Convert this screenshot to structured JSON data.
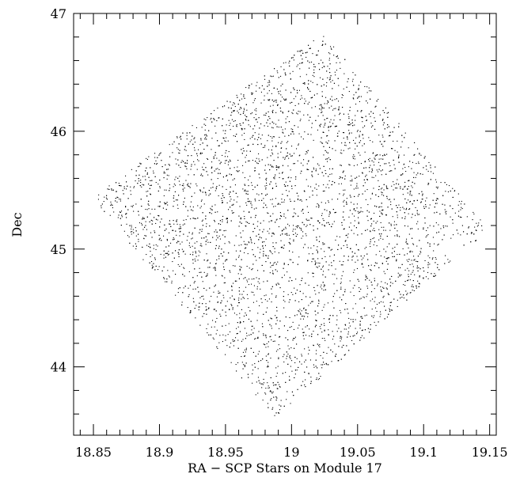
{
  "chart_data": {
    "type": "scatter",
    "title": "",
    "xlabel": "RA − SCP Stars on Module 17",
    "ylabel": "Dec",
    "xlim": [
      18.835,
      19.155
    ],
    "ylim": [
      43.42,
      47.0
    ],
    "x_ticks": [
      {
        "value": 18.85,
        "label": "18.85"
      },
      {
        "value": 18.9,
        "label": "18.9"
      },
      {
        "value": 18.95,
        "label": "18.95"
      },
      {
        "value": 19.0,
        "label": "19"
      },
      {
        "value": 19.05,
        "label": "19.05"
      },
      {
        "value": 19.1,
        "label": "19.1"
      },
      {
        "value": 19.15,
        "label": "19.15"
      }
    ],
    "y_ticks": [
      {
        "value": 44,
        "label": "44"
      },
      {
        "value": 45,
        "label": "45"
      },
      {
        "value": 46,
        "label": "46"
      },
      {
        "value": 47,
        "label": "47"
      }
    ],
    "x_minor_step": 0.01,
    "y_minor_step": 0.2,
    "grid": false,
    "legend": "none",
    "point_color": "#000000",
    "point_count": 5200,
    "region": {
      "shape": "quadrilateral",
      "vertices": [
        {
          "ra": 18.848,
          "dec": 45.44
        },
        {
          "ra": 19.023,
          "dec": 46.84
        },
        {
          "ra": 19.149,
          "dec": 45.17
        },
        {
          "ra": 18.987,
          "dec": 43.57
        }
      ],
      "notch": [
        {
          "ra": 19.116,
          "dec": 45.13
        },
        {
          "ra": 19.111,
          "dec": 44.99
        },
        {
          "ra": 19.142,
          "dec": 44.86
        }
      ]
    }
  }
}
